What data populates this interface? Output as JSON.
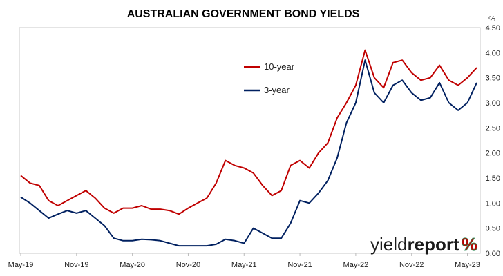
{
  "chart_data": {
    "type": "line",
    "title": "AUSTRALIAN GOVERNMENT BOND YIELDS",
    "y_unit": "%",
    "ylim": [
      0,
      4.5
    ],
    "y_ticks": [
      "0.00",
      "0.50",
      "1.00",
      "1.50",
      "2.00",
      "2.50",
      "3.00",
      "3.50",
      "4.00",
      "4.50"
    ],
    "x_ticks": [
      "May-19",
      "Nov-19",
      "May-20",
      "Nov-20",
      "May-21",
      "Nov-21",
      "May-22",
      "Nov-22",
      "May-23"
    ],
    "grid": false,
    "legend_position": "top-right",
    "x": [
      "May-19",
      "Jun-19",
      "Jul-19",
      "Aug-19",
      "Sep-19",
      "Oct-19",
      "Nov-19",
      "Dec-19",
      "Jan-20",
      "Feb-20",
      "Mar-20",
      "Apr-20",
      "May-20",
      "Jun-20",
      "Jul-20",
      "Aug-20",
      "Sep-20",
      "Oct-20",
      "Nov-20",
      "Dec-20",
      "Jan-21",
      "Feb-21",
      "Mar-21",
      "Apr-21",
      "May-21",
      "Jun-21",
      "Jul-21",
      "Aug-21",
      "Sep-21",
      "Oct-21",
      "Nov-21",
      "Dec-21",
      "Jan-22",
      "Feb-22",
      "Mar-22",
      "Apr-22",
      "May-22",
      "Jun-22",
      "Jul-22",
      "Aug-22",
      "Sep-22",
      "Oct-22",
      "Nov-22",
      "Dec-22",
      "Jan-23",
      "Feb-23",
      "Mar-23",
      "Apr-23",
      "May-23",
      "Jun-23"
    ],
    "series": [
      {
        "name": "10-year",
        "color": "#c00000",
        "values": [
          1.55,
          1.4,
          1.35,
          1.05,
          0.95,
          1.05,
          1.15,
          1.25,
          1.1,
          0.9,
          0.8,
          0.9,
          0.9,
          0.95,
          0.88,
          0.88,
          0.85,
          0.78,
          0.9,
          1.0,
          1.1,
          1.4,
          1.85,
          1.75,
          1.7,
          1.6,
          1.35,
          1.15,
          1.25,
          1.75,
          1.85,
          1.7,
          2.0,
          2.2,
          2.7,
          3.0,
          3.35,
          4.05,
          3.5,
          3.3,
          3.8,
          3.85,
          3.6,
          3.45,
          3.5,
          3.75,
          3.45,
          3.35,
          3.5,
          3.7
        ]
      },
      {
        "name": "3-year",
        "color": "#002060",
        "values": [
          1.12,
          1.0,
          0.85,
          0.7,
          0.78,
          0.85,
          0.8,
          0.85,
          0.7,
          0.55,
          0.3,
          0.25,
          0.25,
          0.28,
          0.27,
          0.25,
          0.2,
          0.15,
          0.15,
          0.15,
          0.15,
          0.18,
          0.28,
          0.25,
          0.2,
          0.5,
          0.4,
          0.3,
          0.3,
          0.6,
          1.05,
          1.0,
          1.2,
          1.45,
          1.9,
          2.6,
          3.0,
          3.85,
          3.2,
          3.0,
          3.35,
          3.45,
          3.2,
          3.05,
          3.1,
          3.4,
          3.0,
          2.85,
          3.0,
          3.4
        ]
      }
    ]
  },
  "legend": {
    "items": [
      {
        "label": "10-year",
        "color": "#c00000"
      },
      {
        "label": "3-year",
        "color": "#002060"
      }
    ]
  },
  "logo": {
    "part1": "yield",
    "part2": "report",
    "pct": "%",
    "color_a": "#c00000",
    "color_b": "#2e8b57"
  }
}
